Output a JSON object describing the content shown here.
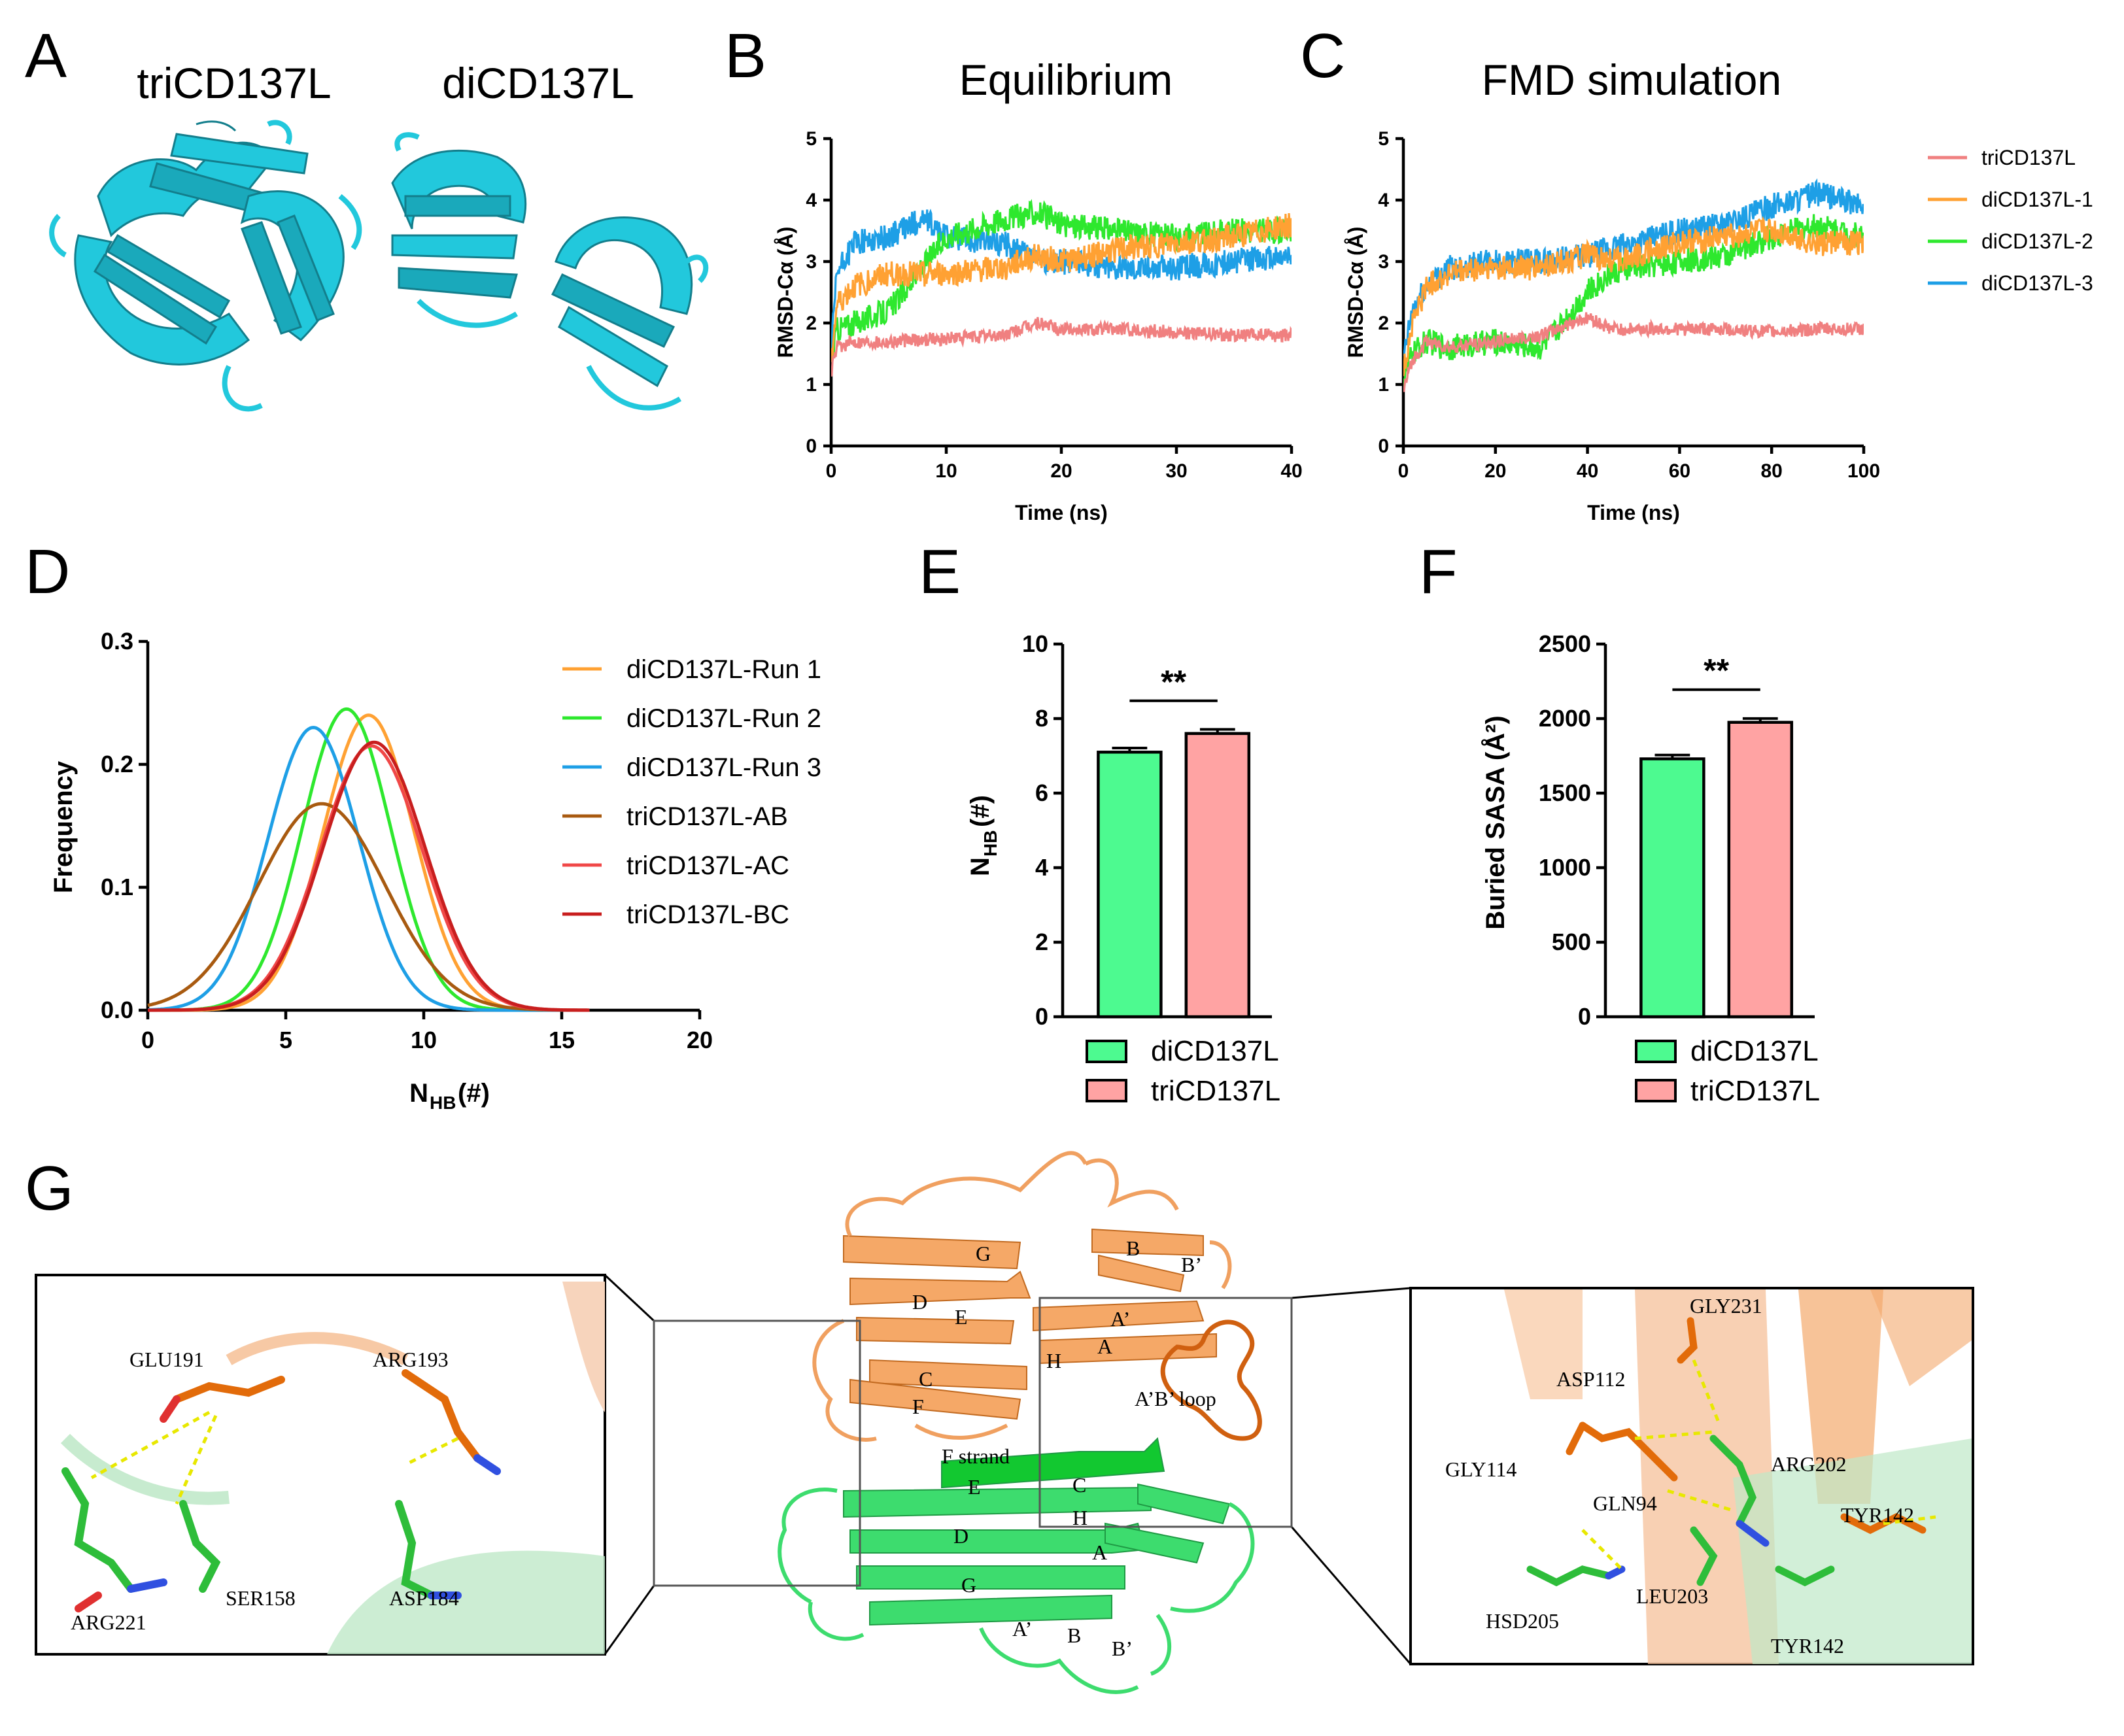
{
  "panels": {
    "A": {
      "label": "A",
      "sub1": "triCD137L",
      "sub2": "diCD137L"
    },
    "B": {
      "label": "B",
      "title": "Equilibrium"
    },
    "C": {
      "label": "C",
      "title": "FMD simulation"
    },
    "D": {
      "label": "D"
    },
    "E": {
      "label": "E"
    },
    "F": {
      "label": "F"
    },
    "G": {
      "label": "G"
    }
  },
  "colors": {
    "triCD137L": "#f08080",
    "diCD137L-1": "#ffa133",
    "diCD137L-2": "#2ee82e",
    "diCD137L-3": "#1e9fe6",
    "cyan": "#22c8dc",
    "orange": "#f0a060",
    "green": "#3ddc6e",
    "barGreen": "#4dfa90",
    "barPink": "#ffa3a3"
  },
  "chart_data": [
    {
      "panel": "B",
      "type": "line",
      "title": "Equilibrium",
      "xlabel": "Time (ns)",
      "ylabel": "RMSD-Cα (Å)",
      "xlim": [
        0,
        40
      ],
      "ylim": [
        0,
        5
      ],
      "xticks": [
        0,
        10,
        20,
        30,
        40
      ],
      "yticks": [
        0,
        1,
        2,
        3,
        4,
        5
      ],
      "series": [
        {
          "name": "triCD137L",
          "x": [
            0,
            0.5,
            2,
            5,
            10,
            15,
            18,
            20,
            25,
            30,
            35,
            40
          ],
          "y": [
            1.2,
            1.6,
            1.7,
            1.7,
            1.75,
            1.8,
            2.0,
            1.9,
            1.9,
            1.85,
            1.8,
            1.8
          ]
        },
        {
          "name": "diCD137L-1",
          "x": [
            0,
            0.5,
            2,
            5,
            10,
            15,
            18,
            20,
            25,
            30,
            35,
            40
          ],
          "y": [
            1.4,
            2.3,
            2.6,
            2.8,
            2.8,
            2.9,
            3.1,
            3.0,
            3.2,
            3.3,
            3.4,
            3.6
          ]
        },
        {
          "name": "diCD137L-2",
          "x": [
            0,
            0.5,
            2,
            5,
            10,
            15,
            18,
            20,
            25,
            30,
            35,
            40
          ],
          "y": [
            1.4,
            1.9,
            2.0,
            2.2,
            3.4,
            3.7,
            3.8,
            3.6,
            3.5,
            3.4,
            3.5,
            3.5
          ]
        },
        {
          "name": "diCD137L-3",
          "x": [
            0,
            0.5,
            2,
            5,
            8,
            10,
            15,
            18,
            20,
            25,
            30,
            35,
            40
          ],
          "y": [
            1.5,
            2.8,
            3.3,
            3.4,
            3.7,
            3.4,
            3.3,
            3.0,
            3.0,
            2.9,
            2.9,
            3.0,
            3.1
          ]
        }
      ]
    },
    {
      "panel": "C",
      "type": "line",
      "title": "FMD simulation",
      "xlabel": "Time (ns)",
      "ylabel": "RMSD-Cα (Å)",
      "xlim": [
        0,
        100
      ],
      "ylim": [
        0,
        5
      ],
      "xticks": [
        0,
        20,
        40,
        60,
        80,
        100
      ],
      "yticks": [
        0,
        1,
        2,
        3,
        4,
        5
      ],
      "series": [
        {
          "name": "triCD137L",
          "x": [
            0,
            2,
            5,
            10,
            20,
            30,
            40,
            45,
            50,
            60,
            70,
            80,
            90,
            100
          ],
          "y": [
            0.9,
            1.4,
            1.7,
            1.6,
            1.7,
            1.8,
            2.1,
            1.9,
            1.9,
            1.9,
            1.9,
            1.85,
            1.9,
            1.9
          ]
        },
        {
          "name": "diCD137L-1",
          "x": [
            0,
            2,
            5,
            10,
            20,
            30,
            40,
            45,
            50,
            60,
            70,
            80,
            90,
            100
          ],
          "y": [
            1.2,
            2.0,
            2.6,
            2.8,
            2.9,
            2.9,
            3.1,
            3.0,
            3.1,
            3.3,
            3.4,
            3.5,
            3.3,
            3.3
          ]
        },
        {
          "name": "diCD137L-2",
          "x": [
            0,
            2,
            5,
            10,
            20,
            30,
            40,
            45,
            50,
            60,
            70,
            80,
            90,
            100
          ],
          "y": [
            1.1,
            1.5,
            1.7,
            1.6,
            1.7,
            1.6,
            2.5,
            2.8,
            2.9,
            3.0,
            3.1,
            3.4,
            3.6,
            3.4
          ]
        },
        {
          "name": "diCD137L-3",
          "x": [
            0,
            2,
            5,
            10,
            20,
            30,
            40,
            45,
            50,
            60,
            70,
            80,
            90,
            100
          ],
          "y": [
            1.4,
            2.2,
            2.6,
            2.9,
            3.0,
            3.0,
            3.1,
            3.2,
            3.3,
            3.5,
            3.6,
            3.9,
            4.1,
            3.9
          ]
        }
      ]
    },
    {
      "panel": "D",
      "type": "line",
      "xlabel_main": "N",
      "xlabel_sub": "HB",
      "xlabel_unit": " (#)",
      "ylabel": "Frequency",
      "xlim": [
        0,
        20
      ],
      "ylim": [
        0,
        0.3
      ],
      "xticks": [
        0,
        5,
        10,
        15,
        20
      ],
      "yticks": [
        "0.0",
        "0.1",
        "0.2",
        "0.3"
      ],
      "series": [
        {
          "name": "diCD137L-Run 1",
          "mean": 8.0,
          "sd": 1.65,
          "peak": 0.24,
          "range": [
            0,
            16
          ]
        },
        {
          "name": "diCD137L-Run 2",
          "mean": 7.2,
          "sd": 1.6,
          "peak": 0.245,
          "range": [
            0,
            16
          ]
        },
        {
          "name": "diCD137L-Run 3",
          "mean": 6.0,
          "sd": 1.65,
          "peak": 0.23,
          "range": [
            0,
            16
          ]
        },
        {
          "name": "triCD137L-AB",
          "mean": 6.3,
          "sd": 2.3,
          "peak": 0.168,
          "range": [
            0,
            16
          ]
        },
        {
          "name": "triCD137L-AC",
          "mean": 8.1,
          "sd": 1.85,
          "peak": 0.215,
          "range": [
            0,
            16
          ]
        },
        {
          "name": "triCD137L-BC",
          "mean": 8.2,
          "sd": 1.85,
          "peak": 0.218,
          "range": [
            0,
            16
          ]
        }
      ]
    },
    {
      "panel": "E",
      "type": "bar",
      "ylabel_main": "N",
      "ylabel_sub": "HB",
      "ylabel_unit": " (#)",
      "ylim": [
        0,
        10
      ],
      "yticks": [
        0,
        2,
        4,
        6,
        8,
        10
      ],
      "categories": [
        "diCD137L",
        "triCD137L"
      ],
      "values": [
        7.1,
        7.6
      ],
      "errors": [
        0.04,
        0.04
      ],
      "significance": "**"
    },
    {
      "panel": "F",
      "type": "bar",
      "ylabel": "Buried SASA (Å²)",
      "ylim": [
        0,
        2500
      ],
      "yticks": [
        0,
        500,
        1000,
        1500,
        2000,
        2500
      ],
      "categories": [
        "diCD137L",
        "triCD137L"
      ],
      "values": [
        1730,
        1975
      ],
      "errors": [
        8,
        8
      ],
      "significance": "**"
    }
  ],
  "legendBC": [
    "triCD137L",
    "diCD137L-1",
    "diCD137L-2",
    "diCD137L-3"
  ],
  "legendD": [
    "diCD137L-Run 1",
    "diCD137L-Run 2",
    "diCD137L-Run 3",
    "triCD137L-AB",
    "triCD137L-AC",
    "triCD137L-BC"
  ],
  "legendEF": [
    "diCD137L",
    "triCD137L"
  ],
  "panelG": {
    "left_residues": [
      "GLU191",
      "ARG193",
      "ARG221",
      "SER158",
      "ASP184"
    ],
    "center_strands_top": [
      "G",
      "B",
      "B’",
      "D",
      "E",
      "A’",
      "A",
      "H",
      "C",
      "F",
      "A’B’ loop"
    ],
    "center_strands_bottom": [
      "F strand",
      "E",
      "C",
      "H",
      "D",
      "A",
      "G",
      "A’",
      "B",
      "B’"
    ],
    "right_residues": [
      "GLY231",
      "ASP112",
      "GLY114",
      "ARG202",
      "GLN94",
      "TYR142",
      "LEU203",
      "HSD205",
      "TYR142"
    ]
  }
}
